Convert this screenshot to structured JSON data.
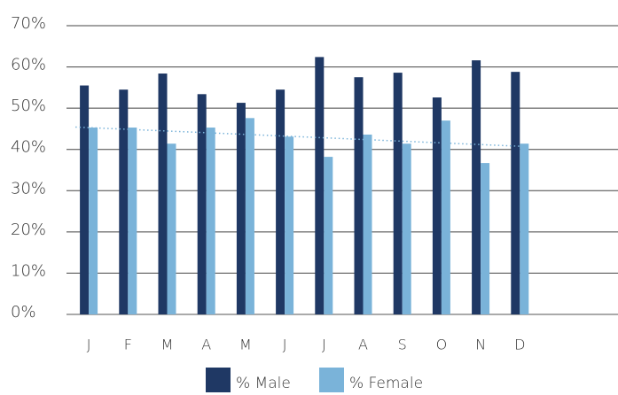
{
  "chart_data": {
    "type": "bar",
    "categories": [
      "J",
      "F",
      "M",
      "A",
      "M",
      "J",
      "J",
      "A",
      "S",
      "O",
      "N",
      "D"
    ],
    "series": [
      {
        "name": "% Male",
        "color": "#1f3864",
        "values": [
          55.5,
          54.5,
          58.4,
          53.4,
          51.3,
          54.5,
          62.4,
          57.5,
          58.6,
          52.6,
          61.6,
          58.8
        ]
      },
      {
        "name": "% Female",
        "color": "#7ab3d9",
        "values": [
          45.3,
          45.3,
          41.4,
          45.3,
          47.6,
          43.1,
          38.2,
          43.6,
          41.4,
          47.0,
          36.7,
          41.4
        ],
        "trendline": true
      }
    ],
    "ylim": [
      0,
      70
    ],
    "yticks": [
      {
        "value": 0,
        "label": "0%"
      },
      {
        "value": 10,
        "label": "10%"
      },
      {
        "value": 20,
        "label": "20%"
      },
      {
        "value": 30,
        "label": "30%"
      },
      {
        "value": 40,
        "label": "40%"
      },
      {
        "value": 50,
        "label": "50%"
      },
      {
        "value": 60,
        "label": "60%"
      },
      {
        "value": 70,
        "label": "70%"
      }
    ],
    "grid": true,
    "legend": "bottom"
  }
}
